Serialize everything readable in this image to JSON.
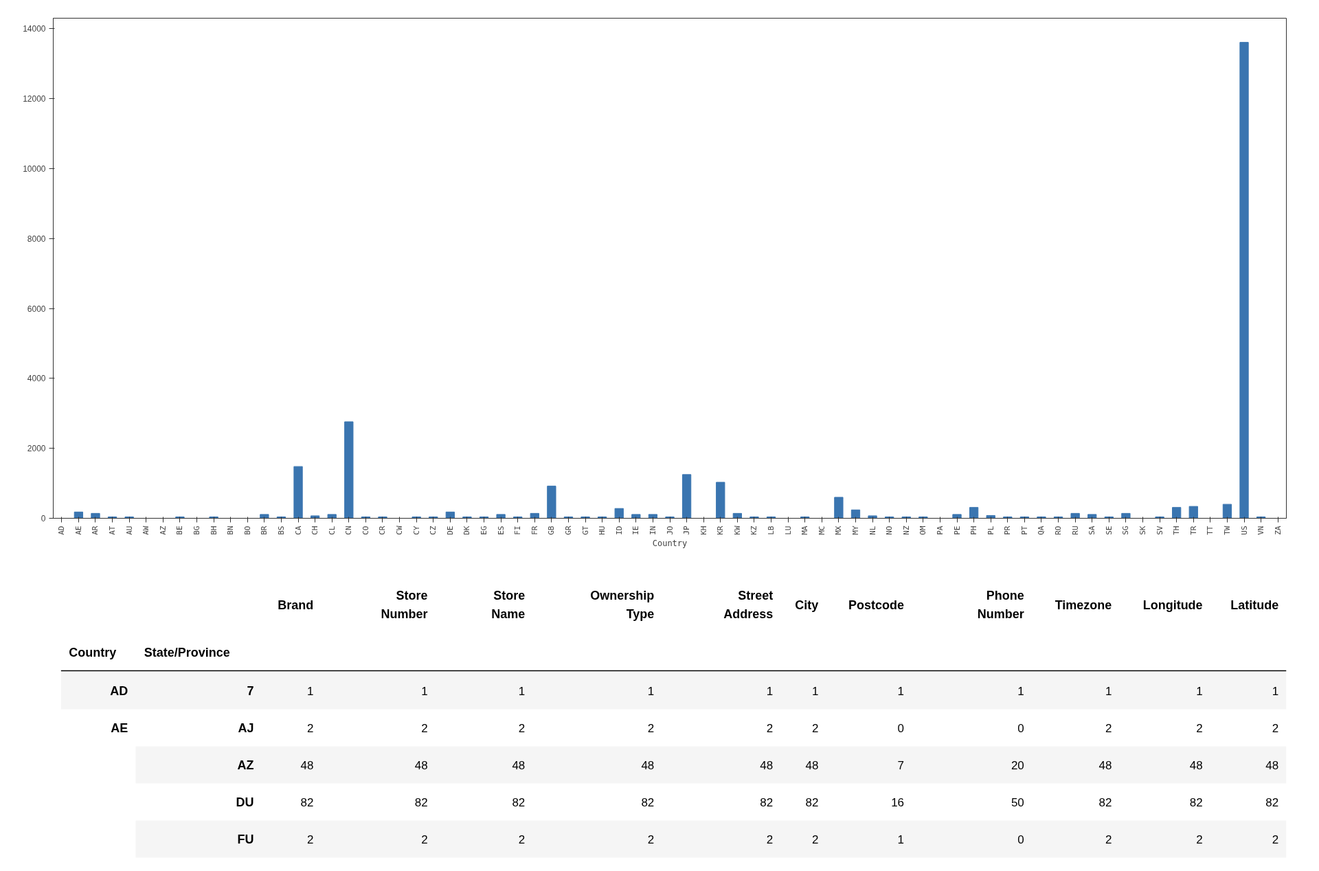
{
  "chart_data": [
    {
      "type": "bar",
      "xlabel": "Country",
      "color": "#3a75b0",
      "categories": [
        "AD",
        "AE",
        "AR",
        "AT",
        "AU",
        "AW",
        "AZ",
        "BE",
        "BG",
        "BH",
        "BN",
        "BO",
        "BR",
        "BS",
        "CA",
        "CH",
        "CL",
        "CN",
        "CO",
        "CR",
        "CW",
        "CY",
        "CZ",
        "DE",
        "DK",
        "EG",
        "ES",
        "FI",
        "FR",
        "GB",
        "GR",
        "GT",
        "HU",
        "ID",
        "IE",
        "IN",
        "JO",
        "JP",
        "KH",
        "KR",
        "KW",
        "KZ",
        "LB",
        "LU",
        "MA",
        "MC",
        "MX",
        "MY",
        "NL",
        "NO",
        "NZ",
        "OM",
        "PA",
        "PE",
        "PH",
        "PL",
        "PR",
        "PT",
        "QA",
        "RO",
        "RU",
        "SA",
        "SE",
        "SG",
        "SK",
        "SV",
        "TH",
        "TR",
        "TT",
        "TW",
        "US",
        "VN",
        "ZA"
      ],
      "values": [
        0,
        180,
        140,
        40,
        40,
        0,
        0,
        40,
        0,
        40,
        0,
        0,
        110,
        40,
        1480,
        70,
        110,
        2760,
        40,
        40,
        0,
        40,
        40,
        180,
        40,
        40,
        110,
        40,
        140,
        920,
        40,
        40,
        40,
        280,
        110,
        110,
        40,
        1250,
        0,
        1030,
        140,
        40,
        40,
        0,
        40,
        0,
        600,
        240,
        70,
        40,
        40,
        40,
        0,
        110,
        310,
        80,
        40,
        40,
        40,
        40,
        140,
        110,
        40,
        140,
        0,
        40,
        310,
        340,
        0,
        400,
        13610,
        40,
        0
      ],
      "ylim": [
        0,
        14300
      ],
      "yticks": [
        0,
        2000,
        4000,
        6000,
        8000,
        10000,
        12000,
        14000
      ]
    },
    {
      "type": "other",
      "categories": [
        "Brand",
        "Store Number",
        "Store Name",
        "Ownership Type",
        "Street Address",
        "City",
        "Postcode",
        "Phone Number",
        "Timezone",
        "Longitude",
        "Latitude"
      ],
      "annotations": [
        "Country",
        "State/Province",
        "AD",
        "AE"
      ],
      "y_categories": [
        "7",
        "AJ",
        "AZ",
        "DU",
        "FU"
      ],
      "cell_labels": [
        [
          "1",
          "1",
          "1",
          "1",
          "1",
          "1",
          "1",
          "1",
          "1",
          "1",
          "1"
        ],
        [
          "2",
          "2",
          "2",
          "2",
          "2",
          "2",
          "0",
          "0",
          "2",
          "2",
          "2"
        ],
        [
          "48",
          "48",
          "48",
          "48",
          "48",
          "48",
          "7",
          "20",
          "48",
          "48",
          "48"
        ],
        [
          "82",
          "82",
          "82",
          "82",
          "82",
          "82",
          "16",
          "50",
          "82",
          "82",
          "82"
        ],
        [
          "2",
          "2",
          "2",
          "2",
          "2",
          "2",
          "1",
          "0",
          "2",
          "2",
          "2"
        ]
      ]
    }
  ]
}
